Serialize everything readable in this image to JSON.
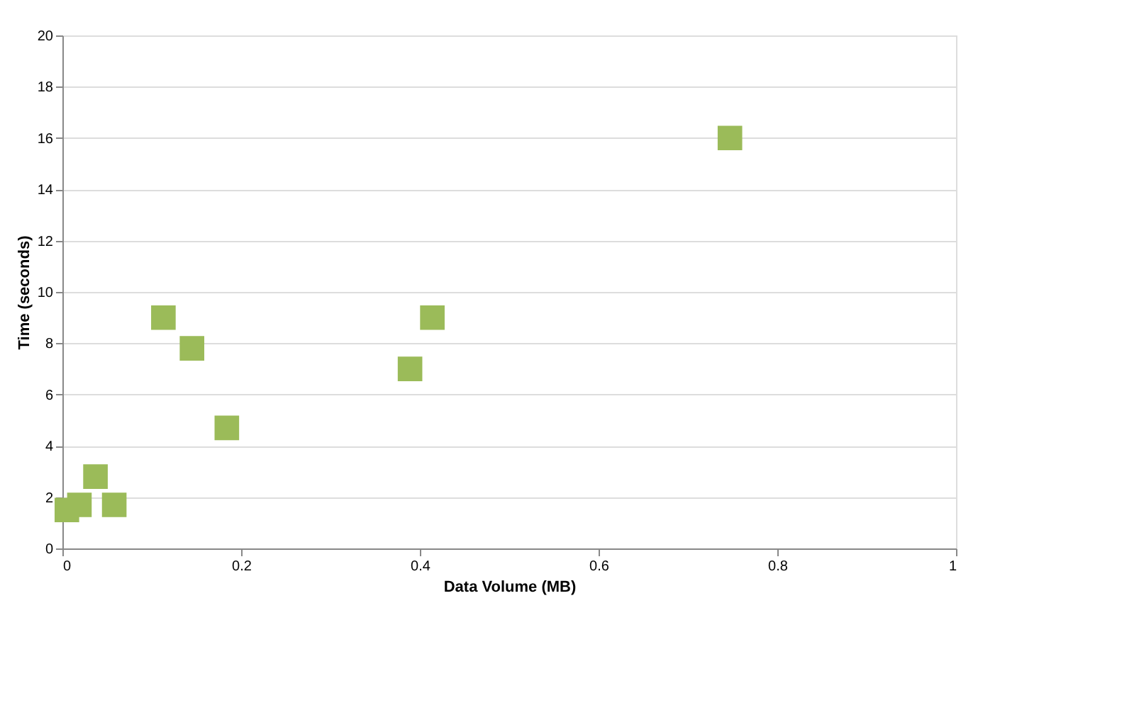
{
  "chart_data": {
    "type": "scatter",
    "xlabel": "Data Volume (MB)",
    "ylabel": "Time (seconds)",
    "x": [
      0.005,
      0.019,
      0.037,
      0.058,
      0.113,
      0.145,
      0.184,
      0.389,
      0.414,
      0.747
    ],
    "series": [
      {
        "color": "#9bbb59",
        "values": [
          1.5,
          1.7,
          2.8,
          1.7,
          9.0,
          7.8,
          4.7,
          7.0,
          9.0,
          16.0
        ]
      }
    ],
    "xlim": [
      0,
      1
    ],
    "xticks": [
      0,
      0.2,
      0.4,
      0.6,
      0.8,
      1
    ],
    "ylim": [
      0,
      20
    ],
    "yticks": [
      0,
      2,
      4,
      6,
      8,
      10,
      12,
      14,
      16,
      18,
      20
    ],
    "grid": "y",
    "legend": false,
    "marker": "square"
  }
}
